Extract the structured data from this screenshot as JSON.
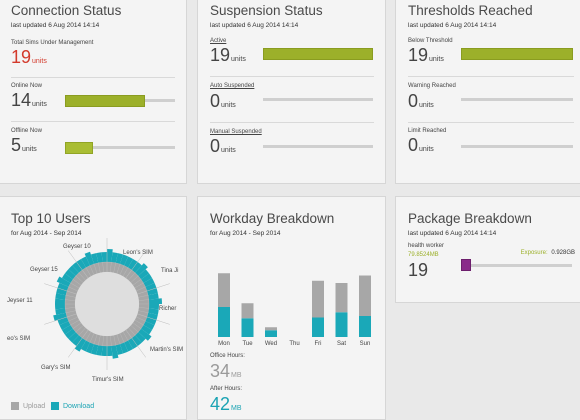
{
  "connection": {
    "title": "Connection Status",
    "updated": "last updated 6 Aug 2014 14:14",
    "total_label": "Total Sims Under Management",
    "total_value": "19",
    "online_label": "Online Now",
    "online_value": "14",
    "offline_label": "Offline Now",
    "offline_value": "5",
    "unit": "units",
    "online_fraction": 0.74,
    "offline_fraction": 0.26
  },
  "suspension": {
    "title": "Suspension Status",
    "updated": "last updated 6 Aug 2014 14:14",
    "active_label": "Active",
    "active_value": "19",
    "auto_label": "Auto Suspended",
    "auto_value": "0",
    "manual_label": "Manual Suspended",
    "manual_value": "0",
    "unit": "units",
    "active_fraction": 1.0
  },
  "thresholds": {
    "title": "Thresholds Reached",
    "updated": "last updated 6 Aug 2014 14:14",
    "below_label": "Below Threshold",
    "below_value": "19",
    "warning_label": "Warning Reached",
    "warning_value": "0",
    "limit_label": "Limit Reached",
    "limit_value": "0",
    "unit": "units",
    "below_fraction": 1.0
  },
  "top_users": {
    "title": "Top 10 Users",
    "period": "for Aug 2014 - Sep 2014",
    "labels": [
      "Geyser 10",
      "Leon's SIM",
      "Tina Ji",
      "Richer",
      "Martin's SIM",
      "Timur's SIM",
      "Gary's SIM",
      "eo's SIM",
      "Jeyser 11",
      "Geyser 15"
    ],
    "legend_upload": "Upload",
    "legend_download": "Download",
    "colors": {
      "upload": "#a7a7a7",
      "download": "#1aa8b8"
    }
  },
  "workday": {
    "title": "Workday Breakdown",
    "period": "for Aug 2014 - Sep 2014",
    "office_label": "Office Hours:",
    "office_value": "34",
    "after_label": "After Hours:",
    "after_value": "42",
    "unit": "MB"
  },
  "package": {
    "title": "Package Breakdown",
    "updated": "last updated 6 Aug 2014 14:14",
    "item_label": "health worker",
    "item_usage": "79.8524MB",
    "exposure_label": "Exposure:",
    "exposure_value": "0.928GB",
    "count": "19",
    "usage_fraction": 0.08
  },
  "chart_data": {
    "type": "bar",
    "categories": [
      "Mon",
      "Tue",
      "Wed",
      "Thu",
      "Fri",
      "Sat",
      "Sun"
    ],
    "series": [
      {
        "name": "Upload",
        "values": [
          45,
          20,
          4,
          0,
          49,
          39,
          54
        ]
      },
      {
        "name": "Download",
        "values": [
          40,
          25,
          9,
          0,
          26,
          33,
          28
        ]
      }
    ],
    "ylim": [
      0,
      100
    ]
  }
}
